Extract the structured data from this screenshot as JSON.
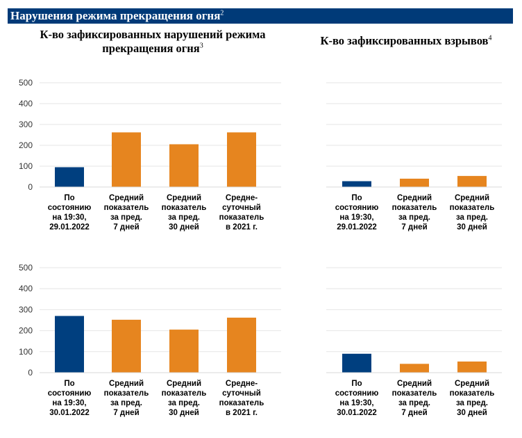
{
  "banner": {
    "title": "Нарушения режима прекращения огня",
    "note": "2"
  },
  "headings": {
    "violations": {
      "title": "К-во зафиксированных нарушений режима прекращения огня",
      "line1": "К-во зафиксированных нарушений режима",
      "line2": "прекращения огня",
      "note": "3"
    },
    "explosions": {
      "title": "К-во зафиксированных взрывов",
      "note": "4"
    }
  },
  "colors": {
    "current": "#003f7f",
    "average": "#e6851f",
    "banner": "#003a78"
  },
  "chart_data": [
    {
      "type": "bar",
      "panel": "top-left",
      "categories": [
        [
          "По",
          "состоянию",
          "на 19:30,",
          "29.01.2022"
        ],
        [
          "Средний",
          "показатель",
          "за пред.",
          "7 дней"
        ],
        [
          "Средний",
          "показатель",
          "за пред.",
          "30 дней"
        ],
        [
          "Средне-",
          "суточный",
          "показатель",
          "в 2021 г."
        ]
      ],
      "values": [
        95,
        262,
        205,
        262
      ],
      "ylim": [
        0,
        500
      ],
      "yticks": [
        0,
        100,
        200,
        300,
        400,
        500
      ],
      "grid": true
    },
    {
      "type": "bar",
      "panel": "top-right",
      "categories": [
        [
          "По",
          "состоянию",
          "на 19:30,",
          "29.01.2022"
        ],
        [
          "Средний",
          "показатель",
          "за пред.",
          "7 дней"
        ],
        [
          "Средний",
          "показатель",
          "за пред.",
          "30 дней"
        ]
      ],
      "values": [
        28,
        40,
        53
      ],
      "ylim": [
        0,
        500
      ],
      "grid": true
    },
    {
      "type": "bar",
      "panel": "bottom-left",
      "categories": [
        [
          "По",
          "состоянию",
          "на 19:30,",
          "30.01.2022"
        ],
        [
          "Средний",
          "показатель",
          "за пред.",
          "7 дней"
        ],
        [
          "Средний",
          "показатель",
          "за пред.",
          "30 дней"
        ],
        [
          "Средне-",
          "суточный",
          "показатель",
          "в 2021 г."
        ]
      ],
      "values": [
        270,
        252,
        205,
        262
      ],
      "ylim": [
        0,
        500
      ],
      "yticks": [
        0,
        100,
        200,
        300,
        400,
        500
      ],
      "grid": true
    },
    {
      "type": "bar",
      "panel": "bottom-right",
      "categories": [
        [
          "По",
          "состоянию",
          "на 19:30,",
          "30.01.2022"
        ],
        [
          "Средний",
          "показатель",
          "за пред.",
          "7 дней"
        ],
        [
          "Средний",
          "показатель",
          "за пред.",
          "30 дней"
        ]
      ],
      "values": [
        90,
        42,
        53
      ],
      "ylim": [
        0,
        500
      ],
      "grid": true
    }
  ]
}
